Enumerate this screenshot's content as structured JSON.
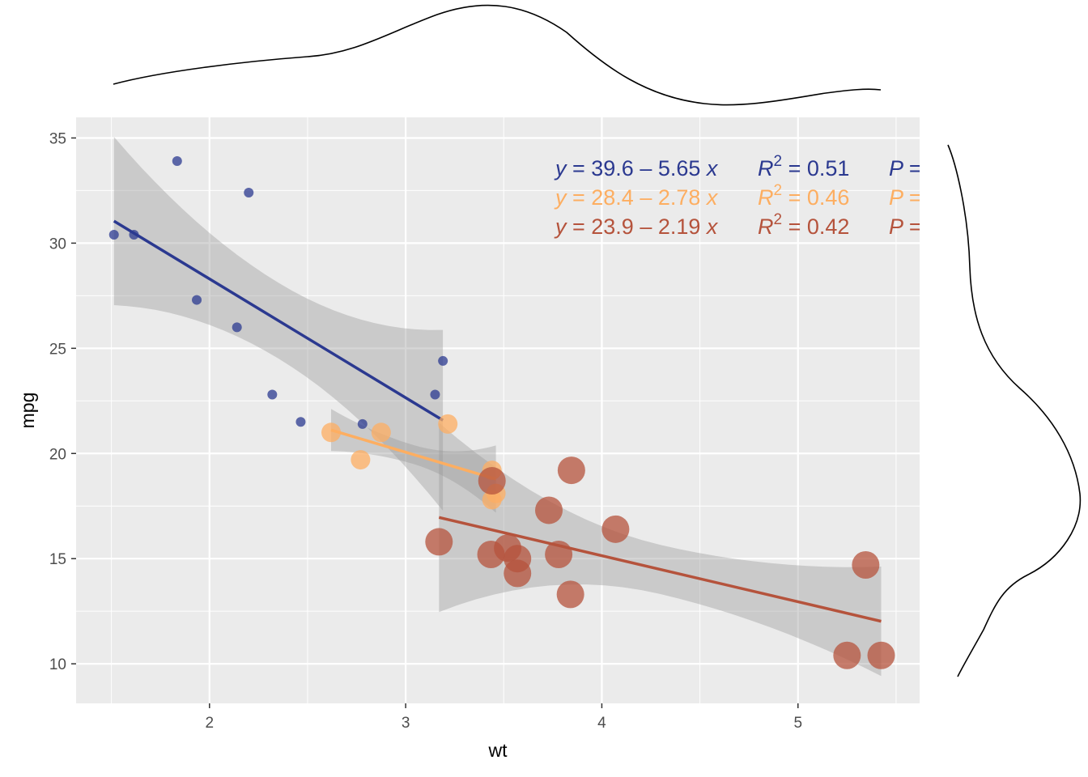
{
  "chart_data": {
    "type": "scatter",
    "xlabel": "wt",
    "ylabel": "mpg",
    "xlim": [
      1.32,
      5.62
    ],
    "ylim": [
      8.12,
      35.98
    ],
    "x_ticks": [
      2,
      3,
      4,
      5
    ],
    "y_ticks": [
      10,
      15,
      20,
      25,
      30,
      35
    ],
    "x_tick_labels": [
      "2",
      "3",
      "4",
      "5"
    ],
    "y_tick_labels": [
      "10",
      "15",
      "20",
      "25",
      "30",
      "35"
    ],
    "grid": true,
    "marginal_density_top": true,
    "marginal_density_right": true,
    "colors": {
      "panel": "#ebebeb",
      "grid": "#ffffff",
      "ribbon": "#999999"
    },
    "series": [
      {
        "color": "#2b3990",
        "point_radius": 6,
        "fit": {
          "intercept": 39.6,
          "slope": -5.65,
          "x_range": [
            1.513,
            3.19
          ]
        },
        "ribbon": {
          "left_half_width": 4.0,
          "right_half_width": 4.3
        },
        "equation": {
          "y": "y",
          "eq": " = 39.6 – 5.65 ",
          "x": "x",
          "r": "R",
          "sup": "2",
          "r2": " = 0.51",
          "p": "P = "
        },
        "points": [
          {
            "x": 1.513,
            "y": 30.4
          },
          {
            "x": 1.615,
            "y": 30.4
          },
          {
            "x": 1.835,
            "y": 33.9
          },
          {
            "x": 1.935,
            "y": 27.3
          },
          {
            "x": 2.14,
            "y": 26.0
          },
          {
            "x": 2.2,
            "y": 32.4
          },
          {
            "x": 2.32,
            "y": 22.8
          },
          {
            "x": 2.465,
            "y": 21.5
          },
          {
            "x": 2.78,
            "y": 21.4
          },
          {
            "x": 3.15,
            "y": 22.8
          },
          {
            "x": 3.19,
            "y": 24.4
          }
        ]
      },
      {
        "color": "#fdae61",
        "point_radius": 12,
        "fit": {
          "intercept": 28.4,
          "slope": -2.78,
          "x_range": [
            2.62,
            3.46
          ]
        },
        "ribbon": {
          "left_half_width": 1.0,
          "right_half_width": 1.6
        },
        "equation": {
          "y": "y",
          "eq": " = 28.4 – 2.78 ",
          "x": "x",
          "r": "R",
          "sup": "2",
          "r2": " = 0.46",
          "p": "P = "
        },
        "points": [
          {
            "x": 2.62,
            "y": 21.0
          },
          {
            "x": 2.77,
            "y": 19.7
          },
          {
            "x": 2.875,
            "y": 21.0
          },
          {
            "x": 3.215,
            "y": 21.4
          },
          {
            "x": 3.44,
            "y": 17.8
          },
          {
            "x": 3.44,
            "y": 19.2
          },
          {
            "x": 3.46,
            "y": 18.1
          }
        ]
      },
      {
        "color": "#b5533c",
        "point_radius": 17,
        "fit": {
          "intercept": 23.9,
          "slope": -2.19,
          "x_range": [
            3.17,
            5.424
          ]
        },
        "ribbon": {
          "left_half_width": 4.5,
          "right_half_width": 2.6
        },
        "equation": {
          "y": "y",
          "eq": " = 23.9 – 2.19 ",
          "x": "x",
          "r": "R",
          "sup": "2",
          "r2": " = 0.42",
          "p": "P = "
        },
        "points": [
          {
            "x": 3.17,
            "y": 15.8
          },
          {
            "x": 3.435,
            "y": 15.2
          },
          {
            "x": 3.44,
            "y": 18.7
          },
          {
            "x": 3.52,
            "y": 15.5
          },
          {
            "x": 3.57,
            "y": 15.0
          },
          {
            "x": 3.57,
            "y": 14.3
          },
          {
            "x": 3.73,
            "y": 17.3
          },
          {
            "x": 3.78,
            "y": 15.2
          },
          {
            "x": 3.84,
            "y": 13.3
          },
          {
            "x": 3.845,
            "y": 19.2
          },
          {
            "x": 4.07,
            "y": 16.4
          },
          {
            "x": 5.25,
            "y": 10.4
          },
          {
            "x": 5.345,
            "y": 14.7
          },
          {
            "x": 5.424,
            "y": 10.4
          }
        ]
      }
    ]
  }
}
